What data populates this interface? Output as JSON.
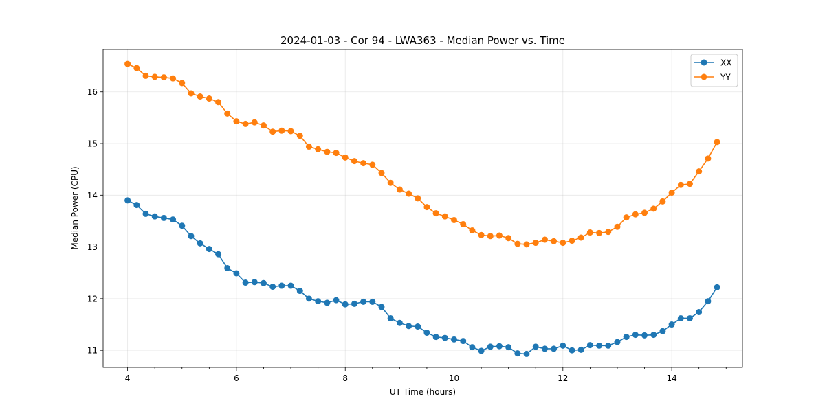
{
  "chart_data": {
    "type": "line",
    "title": "2024-01-03 - Cor 94 - LWA363 - Median Power vs. Time",
    "xlabel": "UT Time (hours)",
    "ylabel": "Median Power (CPU)",
    "xlim": [
      3.55,
      15.3
    ],
    "ylim": [
      10.67,
      16.82
    ],
    "xticks": [
      4,
      6,
      8,
      10,
      12,
      14
    ],
    "xtick_labels": [
      "4",
      "6",
      "8",
      "10",
      "12",
      "14"
    ],
    "yticks": [
      11,
      12,
      13,
      14,
      15,
      16
    ],
    "ytick_labels": [
      "11",
      "12",
      "13",
      "14",
      "15",
      "16"
    ],
    "grid": true,
    "legend_position": "top-right",
    "x": [
      4.0,
      4.167,
      4.333,
      4.5,
      4.667,
      4.833,
      5.0,
      5.167,
      5.333,
      5.5,
      5.667,
      5.833,
      6.0,
      6.167,
      6.333,
      6.5,
      6.667,
      6.833,
      7.0,
      7.167,
      7.333,
      7.5,
      7.667,
      7.833,
      8.0,
      8.167,
      8.333,
      8.5,
      8.667,
      8.833,
      9.0,
      9.167,
      9.333,
      9.5,
      9.667,
      9.833,
      10.0,
      10.167,
      10.333,
      10.5,
      10.667,
      10.833,
      11.0,
      11.167,
      11.333,
      11.5,
      11.667,
      11.833,
      12.0,
      12.167,
      12.333,
      12.5,
      12.667,
      12.833,
      13.0,
      13.167,
      13.333,
      13.5,
      13.667,
      13.833,
      14.0,
      14.167,
      14.333,
      14.5,
      14.667,
      14.833
    ],
    "series": [
      {
        "name": "XX",
        "color": "#1f77b4",
        "values": [
          13.9,
          13.81,
          13.64,
          13.59,
          13.56,
          13.53,
          13.41,
          13.21,
          13.07,
          12.96,
          12.86,
          12.59,
          12.49,
          12.31,
          12.32,
          12.3,
          12.23,
          12.25,
          12.25,
          12.15,
          12.0,
          11.95,
          11.92,
          11.97,
          11.89,
          11.9,
          11.94,
          11.94,
          11.84,
          11.62,
          11.53,
          11.47,
          11.46,
          11.34,
          11.26,
          11.24,
          11.21,
          11.18,
          11.06,
          10.99,
          11.07,
          11.08,
          11.06,
          10.94,
          10.93,
          11.07,
          11.03,
          11.03,
          11.09,
          11.0,
          11.01,
          11.1,
          11.09,
          11.09,
          11.16,
          11.26,
          11.3,
          11.29,
          11.3,
          11.37,
          11.5,
          11.62,
          11.62,
          11.74,
          11.95,
          12.22
        ]
      },
      {
        "name": "YY",
        "color": "#ff7f0e",
        "values": [
          16.54,
          16.46,
          16.31,
          16.29,
          16.28,
          16.26,
          16.17,
          15.97,
          15.91,
          15.87,
          15.8,
          15.58,
          15.43,
          15.38,
          15.41,
          15.35,
          15.23,
          15.25,
          15.24,
          15.15,
          14.94,
          14.89,
          14.84,
          14.82,
          14.73,
          14.66,
          14.62,
          14.59,
          14.43,
          14.24,
          14.11,
          14.03,
          13.94,
          13.77,
          13.65,
          13.59,
          13.52,
          13.44,
          13.32,
          13.23,
          13.21,
          13.22,
          13.17,
          13.06,
          13.05,
          13.08,
          13.14,
          13.11,
          13.08,
          13.12,
          13.18,
          13.28,
          13.27,
          13.29,
          13.39,
          13.57,
          13.63,
          13.66,
          13.74,
          13.88,
          14.05,
          14.2,
          14.22,
          14.46,
          14.71,
          15.03
        ]
      }
    ]
  }
}
